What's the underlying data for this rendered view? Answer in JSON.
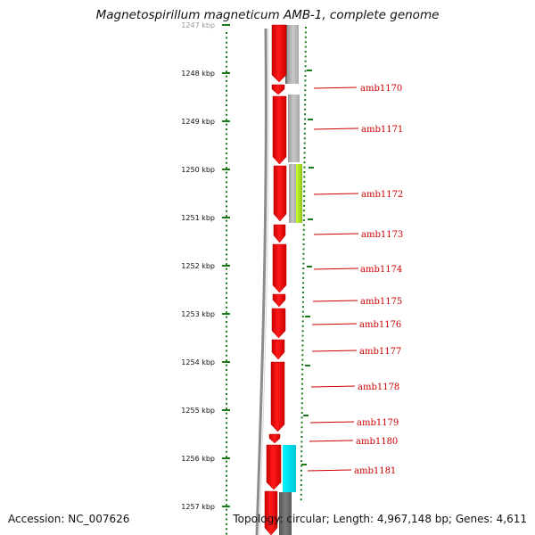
{
  "title": "Magnetospirillum magneticum AMB-1, complete genome",
  "footer": {
    "accession": "Accession: NC_007626",
    "stats": "Topology: circular; Length: 4,967,148 bp; Genes: 4,611"
  },
  "colors": {
    "gene_forward": "#ff0000",
    "gene_reverse": "#b4b4b4",
    "highlight_green": "#a6d92a",
    "highlight_cyan": "#00e5ee",
    "label": "#cc0000",
    "tick": "#1a7a1a"
  },
  "scale": {
    "unit": "kbp",
    "labels": [
      "1247 kbp",
      "1248 kbp",
      "1249 kbp",
      "1250 kbp",
      "1251 kbp",
      "1252 kbp",
      "1253 kbp",
      "1254 kbp",
      "1255 kbp",
      "1256 kbp",
      "1257 kbp"
    ]
  },
  "genes": [
    {
      "name": "amb1170"
    },
    {
      "name": "amb1171"
    },
    {
      "name": "amb1172"
    },
    {
      "name": "amb1173"
    },
    {
      "name": "amb1174"
    },
    {
      "name": "amb1175"
    },
    {
      "name": "amb1176"
    },
    {
      "name": "amb1177"
    },
    {
      "name": "amb1178"
    },
    {
      "name": "amb1179"
    },
    {
      "name": "amb1180"
    },
    {
      "name": "amb1181"
    }
  ]
}
